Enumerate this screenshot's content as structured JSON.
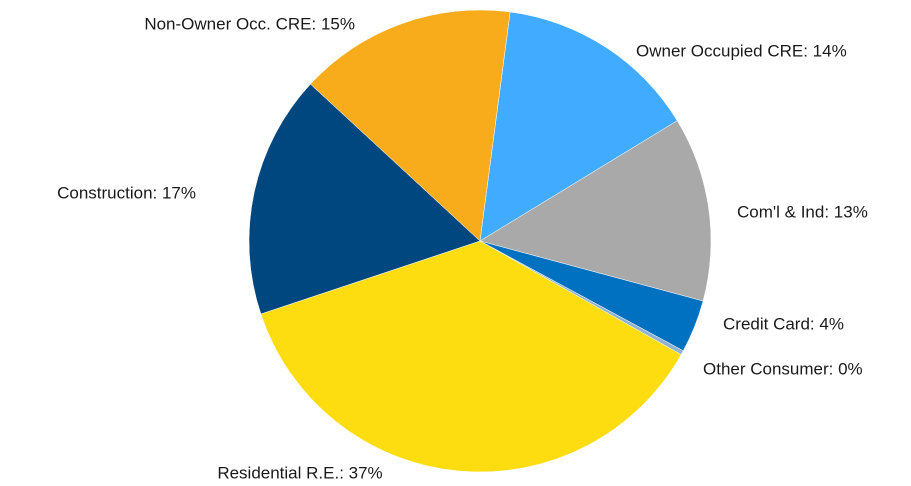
{
  "chart_data": {
    "type": "pie",
    "value_labels": [
      "Owner Occupied CRE: 14%",
      "Com'l & Ind: 13%",
      "Credit Card: 4%",
      "Other Consumer: 0%",
      "Residential R.E.: 37%",
      "Construction: 17%",
      "Non-Owner Occ. CRE: 15%"
    ],
    "values": [
      14.2,
      12.9,
      3.7,
      0.3,
      36.7,
      17.0,
      15.2
    ],
    "colors": [
      "#41acff",
      "#a9a9a9",
      "#0070c0",
      "#8fb3d1",
      "#fddc10",
      "#00467f",
      "#f8ab1b"
    ]
  }
}
